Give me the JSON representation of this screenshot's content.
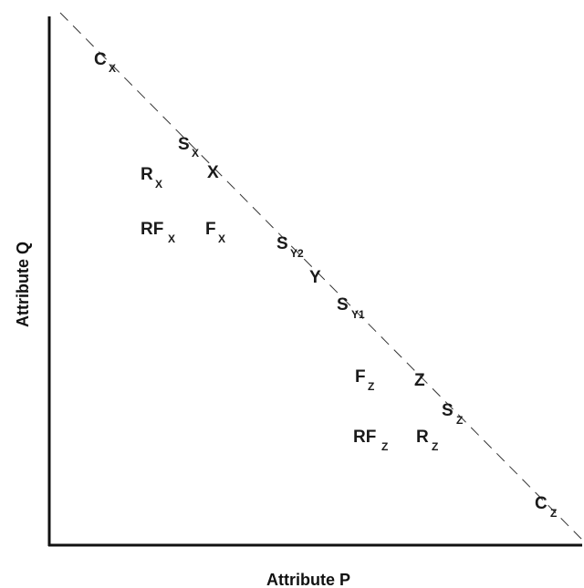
{
  "axes": {
    "x_title": "Attribute P",
    "y_title": "Attribute Q"
  },
  "points": [
    {
      "id": "cx",
      "main": "C",
      "sub": "X"
    },
    {
      "id": "sx",
      "main": "S",
      "sub": "X"
    },
    {
      "id": "x",
      "main": "X",
      "sub": ""
    },
    {
      "id": "rx",
      "main": "R",
      "sub": "X"
    },
    {
      "id": "rfx",
      "main": "RF",
      "sub": "X"
    },
    {
      "id": "fx",
      "main": "F",
      "sub": "X"
    },
    {
      "id": "sy2",
      "main": "S",
      "sub": "Y2"
    },
    {
      "id": "y",
      "main": "Y",
      "sub": ""
    },
    {
      "id": "sy1",
      "main": "S",
      "sub": "Y1"
    },
    {
      "id": "fz",
      "main": "F",
      "sub": "Z"
    },
    {
      "id": "z",
      "main": "Z",
      "sub": ""
    },
    {
      "id": "sz",
      "main": "S",
      "sub": "Z"
    },
    {
      "id": "rfz",
      "main": "RF",
      "sub": "Z"
    },
    {
      "id": "rz",
      "main": "R",
      "sub": "Z"
    },
    {
      "id": "cz",
      "main": "C",
      "sub": "Z"
    }
  ]
}
